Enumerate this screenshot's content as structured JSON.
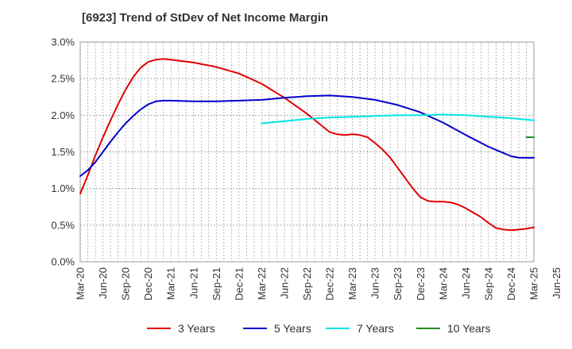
{
  "chart_data": {
    "type": "line",
    "title": "[6923]  Trend of StDev of Net Income Margin",
    "xlabel": "",
    "ylabel": "",
    "x_ticks": [
      "Mar-20",
      "Jun-20",
      "Sep-20",
      "Dec-20",
      "Mar-21",
      "Jun-21",
      "Sep-21",
      "Dec-21",
      "Mar-22",
      "Jun-22",
      "Sep-22",
      "Dec-22",
      "Mar-23",
      "Jun-23",
      "Sep-23",
      "Dec-23",
      "Mar-24",
      "Jun-24",
      "Sep-24",
      "Dec-24",
      "Mar-25",
      "Jun-25"
    ],
    "y_ticks": [
      "0.0%",
      "0.5%",
      "1.0%",
      "1.5%",
      "2.0%",
      "2.5%",
      "3.0%"
    ],
    "ylim": [
      0,
      3.0
    ],
    "grid": true,
    "legend_position": "bottom",
    "series": [
      {
        "name": "3 Years",
        "color": "#e00000",
        "points": [
          [
            "Mar-20",
            0.93
          ],
          [
            "Apr-20",
            1.18
          ],
          [
            "May-20",
            1.45
          ],
          [
            "Jun-20",
            1.7
          ],
          [
            "Jul-20",
            1.93
          ],
          [
            "Aug-20",
            2.15
          ],
          [
            "Sep-20",
            2.35
          ],
          [
            "Oct-20",
            2.52
          ],
          [
            "Nov-20",
            2.65
          ],
          [
            "Dec-20",
            2.73
          ],
          [
            "Jan-21",
            2.76
          ],
          [
            "Feb-21",
            2.77
          ],
          [
            "Mar-21",
            2.76
          ],
          [
            "Jun-21",
            2.72
          ],
          [
            "Sep-21",
            2.66
          ],
          [
            "Dec-21",
            2.57
          ],
          [
            "Mar-22",
            2.43
          ],
          [
            "Jun-22",
            2.24
          ],
          [
            "Sep-22",
            2.02
          ],
          [
            "Dec-22",
            1.77
          ],
          [
            "Jan-23",
            1.74
          ],
          [
            "Feb-23",
            1.73
          ],
          [
            "Mar-23",
            1.74
          ],
          [
            "Apr-23",
            1.73
          ],
          [
            "May-23",
            1.7
          ],
          [
            "Jun-23",
            1.62
          ],
          [
            "Jul-23",
            1.53
          ],
          [
            "Aug-23",
            1.42
          ],
          [
            "Sep-23",
            1.28
          ],
          [
            "Oct-23",
            1.14
          ],
          [
            "Nov-23",
            1.0
          ],
          [
            "Dec-23",
            0.88
          ],
          [
            "Jan-24",
            0.83
          ],
          [
            "Feb-24",
            0.82
          ],
          [
            "Mar-24",
            0.82
          ],
          [
            "Apr-24",
            0.81
          ],
          [
            "May-24",
            0.78
          ],
          [
            "Jun-24",
            0.73
          ],
          [
            "Jul-24",
            0.67
          ],
          [
            "Aug-24",
            0.61
          ],
          [
            "Sep-24",
            0.53
          ],
          [
            "Oct-24",
            0.46
          ],
          [
            "Nov-24",
            0.44
          ],
          [
            "Dec-24",
            0.43
          ],
          [
            "Jan-25",
            0.44
          ],
          [
            "Feb-25",
            0.45
          ],
          [
            "Mar-25",
            0.47
          ]
        ]
      },
      {
        "name": "5 Years",
        "color": "#0000cc",
        "points": [
          [
            "Mar-20",
            1.17
          ],
          [
            "Apr-20",
            1.25
          ],
          [
            "May-20",
            1.36
          ],
          [
            "Jun-20",
            1.5
          ],
          [
            "Jul-20",
            1.64
          ],
          [
            "Aug-20",
            1.77
          ],
          [
            "Sep-20",
            1.89
          ],
          [
            "Oct-20",
            1.99
          ],
          [
            "Nov-20",
            2.08
          ],
          [
            "Dec-20",
            2.15
          ],
          [
            "Jan-21",
            2.19
          ],
          [
            "Feb-21",
            2.2
          ],
          [
            "Mar-21",
            2.2
          ],
          [
            "Jun-21",
            2.19
          ],
          [
            "Sep-21",
            2.19
          ],
          [
            "Dec-21",
            2.2
          ],
          [
            "Mar-22",
            2.21
          ],
          [
            "Jun-22",
            2.24
          ],
          [
            "Sep-22",
            2.26
          ],
          [
            "Dec-22",
            2.27
          ],
          [
            "Mar-23",
            2.25
          ],
          [
            "Jun-23",
            2.21
          ],
          [
            "Sep-23",
            2.14
          ],
          [
            "Dec-23",
            2.04
          ],
          [
            "Mar-24",
            1.9
          ],
          [
            "Jun-24",
            1.73
          ],
          [
            "Sep-24",
            1.57
          ],
          [
            "Dec-24",
            1.44
          ],
          [
            "Jan-25",
            1.42
          ],
          [
            "Feb-25",
            1.42
          ],
          [
            "Mar-25",
            1.42
          ]
        ]
      },
      {
        "name": "7 Years",
        "color": "#00e5e5",
        "points": [
          [
            "Mar-22",
            1.89
          ],
          [
            "Jun-22",
            1.92
          ],
          [
            "Sep-22",
            1.95
          ],
          [
            "Dec-22",
            1.97
          ],
          [
            "Mar-23",
            1.98
          ],
          [
            "Jun-23",
            1.99
          ],
          [
            "Sep-23",
            2.0
          ],
          [
            "Dec-23",
            2.0
          ],
          [
            "Mar-24",
            2.01
          ],
          [
            "Jun-24",
            2.0
          ],
          [
            "Sep-24",
            1.98
          ],
          [
            "Dec-24",
            1.96
          ],
          [
            "Mar-25",
            1.93
          ]
        ]
      },
      {
        "name": "10 Years",
        "color": "#228b22",
        "points": [
          [
            "Feb-25",
            1.7
          ],
          [
            "Mar-25",
            1.7
          ]
        ]
      }
    ]
  }
}
